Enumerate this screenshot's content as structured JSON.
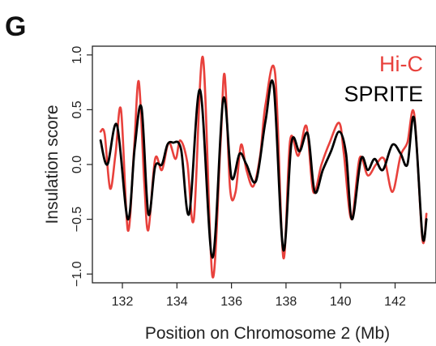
{
  "panel_label": "G",
  "chart_data": {
    "type": "line",
    "title": "",
    "xlabel": "Position on Chromosome 2 (Mb)",
    "ylabel": "Insulation score",
    "xlim": [
      130.9,
      143.5
    ],
    "ylim": [
      -1.08,
      1.08
    ],
    "xticks": [
      132,
      134,
      136,
      138,
      140,
      142
    ],
    "xtick_labels": [
      "132",
      "134",
      "136",
      "138",
      "140",
      "142"
    ],
    "yticks": [
      -1.0,
      -0.5,
      0.0,
      0.5,
      1.0
    ],
    "ytick_labels": [
      "−1.0",
      "−0.5",
      "0.0",
      "0.5",
      "1.0"
    ],
    "grid": false,
    "legend_position": "top-right",
    "series": [
      {
        "name": "Hi-C",
        "color": "#e8413c",
        "points": [
          [
            131.2,
            0.3
          ],
          [
            131.35,
            0.28
          ],
          [
            131.55,
            -0.22
          ],
          [
            131.75,
            0.1
          ],
          [
            131.95,
            0.5
          ],
          [
            132.2,
            -0.6
          ],
          [
            132.42,
            0.1
          ],
          [
            132.6,
            0.76
          ],
          [
            132.8,
            -0.15
          ],
          [
            132.95,
            -0.6
          ],
          [
            133.2,
            0.05
          ],
          [
            133.45,
            -0.05
          ],
          [
            133.7,
            0.2
          ],
          [
            133.95,
            0.05
          ],
          [
            134.12,
            0.22
          ],
          [
            134.38,
            0.02
          ],
          [
            134.62,
            -0.5
          ],
          [
            134.95,
            0.98
          ],
          [
            135.3,
            -1.02
          ],
          [
            135.6,
            0.2
          ],
          [
            135.75,
            0.82
          ],
          [
            135.95,
            -0.22
          ],
          [
            136.15,
            -0.25
          ],
          [
            136.35,
            0.18
          ],
          [
            136.55,
            -0.05
          ],
          [
            136.8,
            -0.2
          ],
          [
            137.05,
            0.08
          ],
          [
            137.25,
            0.55
          ],
          [
            137.6,
            0.83
          ],
          [
            137.9,
            -0.85
          ],
          [
            138.15,
            0.22
          ],
          [
            138.45,
            0.08
          ],
          [
            138.75,
            0.35
          ],
          [
            139.0,
            -0.25
          ],
          [
            139.3,
            0.0
          ],
          [
            139.6,
            0.2
          ],
          [
            139.95,
            0.38
          ],
          [
            140.12,
            0.1
          ],
          [
            140.4,
            -0.5
          ],
          [
            140.7,
            0.06
          ],
          [
            141.0,
            -0.1
          ],
          [
            141.3,
            0.0
          ],
          [
            141.6,
            0.05
          ],
          [
            141.9,
            -0.25
          ],
          [
            142.2,
            0.08
          ],
          [
            142.45,
            0.2
          ],
          [
            142.7,
            0.46
          ],
          [
            143.0,
            -0.68
          ],
          [
            143.15,
            -0.45
          ]
        ]
      },
      {
        "name": "SPRITE",
        "color": "#000000",
        "points": [
          [
            131.2,
            0.22
          ],
          [
            131.45,
            0.0
          ],
          [
            131.8,
            0.36
          ],
          [
            132.2,
            -0.5
          ],
          [
            132.45,
            0.15
          ],
          [
            132.7,
            0.52
          ],
          [
            132.95,
            -0.45
          ],
          [
            133.2,
            -0.02
          ],
          [
            133.45,
            0.0
          ],
          [
            133.65,
            0.18
          ],
          [
            133.85,
            0.2
          ],
          [
            134.15,
            0.14
          ],
          [
            134.45,
            -0.45
          ],
          [
            134.85,
            0.68
          ],
          [
            135.3,
            -0.85
          ],
          [
            135.7,
            0.6
          ],
          [
            136.0,
            -0.12
          ],
          [
            136.3,
            0.1
          ],
          [
            136.55,
            0.0
          ],
          [
            136.9,
            -0.15
          ],
          [
            137.25,
            0.4
          ],
          [
            137.55,
            0.71
          ],
          [
            137.9,
            -0.78
          ],
          [
            138.2,
            0.2
          ],
          [
            138.5,
            0.12
          ],
          [
            138.8,
            0.28
          ],
          [
            139.05,
            -0.25
          ],
          [
            139.35,
            -0.05
          ],
          [
            139.65,
            0.12
          ],
          [
            139.95,
            0.3
          ],
          [
            140.2,
            0.1
          ],
          [
            140.42,
            -0.5
          ],
          [
            140.75,
            0.05
          ],
          [
            141.0,
            -0.05
          ],
          [
            141.25,
            0.05
          ],
          [
            141.55,
            -0.05
          ],
          [
            141.9,
            0.18
          ],
          [
            142.2,
            0.1
          ],
          [
            142.45,
            0.0
          ],
          [
            142.7,
            0.42
          ],
          [
            143.0,
            -0.65
          ],
          [
            143.15,
            -0.5
          ]
        ]
      }
    ]
  }
}
